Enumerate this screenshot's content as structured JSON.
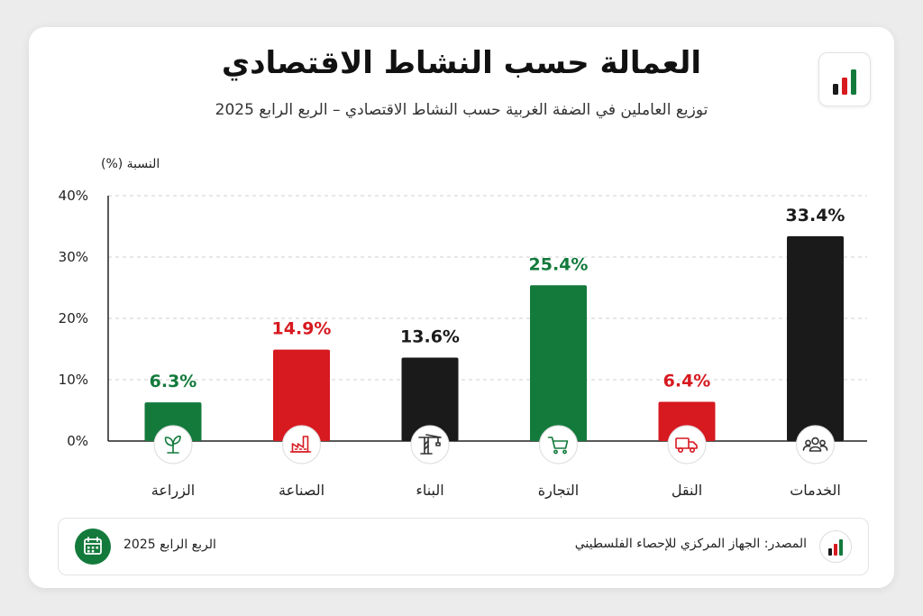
{
  "header": {
    "title": "العمالة حسب النشاط الاقتصادي",
    "subtitle": "توزيع العاملين في الضفة الغربية حسب النشاط الاقتصادي – الربع الرابع 2025",
    "logo_icon": "bar-chart-icon"
  },
  "chart_data": {
    "type": "bar",
    "ylabel": "النسبة (%)",
    "ylim": [
      0,
      40
    ],
    "yticks": [
      0,
      10,
      20,
      30,
      40
    ],
    "ytick_labels": [
      "0%",
      "10%",
      "20%",
      "30%",
      "40%"
    ],
    "grid": true,
    "categories": [
      "الزراعة",
      "الصناعة",
      "البناء",
      "التجارة",
      "النقل",
      "الخدمات"
    ],
    "values": [
      6.3,
      14.9,
      13.6,
      25.4,
      6.4,
      33.4
    ],
    "value_labels": [
      "6.3%",
      "14.9%",
      "13.6%",
      "25.4%",
      "6.4%",
      "33.4%"
    ],
    "colors": [
      "#137a3c",
      "#d71920",
      "#1a1a1a",
      "#137a3c",
      "#d71920",
      "#1a1a1a"
    ],
    "label_colors": [
      "#137a3c",
      "#d71920",
      "#1a1a1a",
      "#137a3c",
      "#d71920",
      "#1a1a1a"
    ],
    "icons": [
      "plant-icon",
      "factory-icon",
      "crane-icon",
      "cart-icon",
      "truck-icon",
      "people-icon"
    ]
  },
  "footer": {
    "source": "المصدر: الجهاز المركزي للإحصاء الفلسطيني",
    "period": "الربع الرابع 2025",
    "source_icon": "bar-chart-icon",
    "period_icon": "calendar-icon"
  }
}
